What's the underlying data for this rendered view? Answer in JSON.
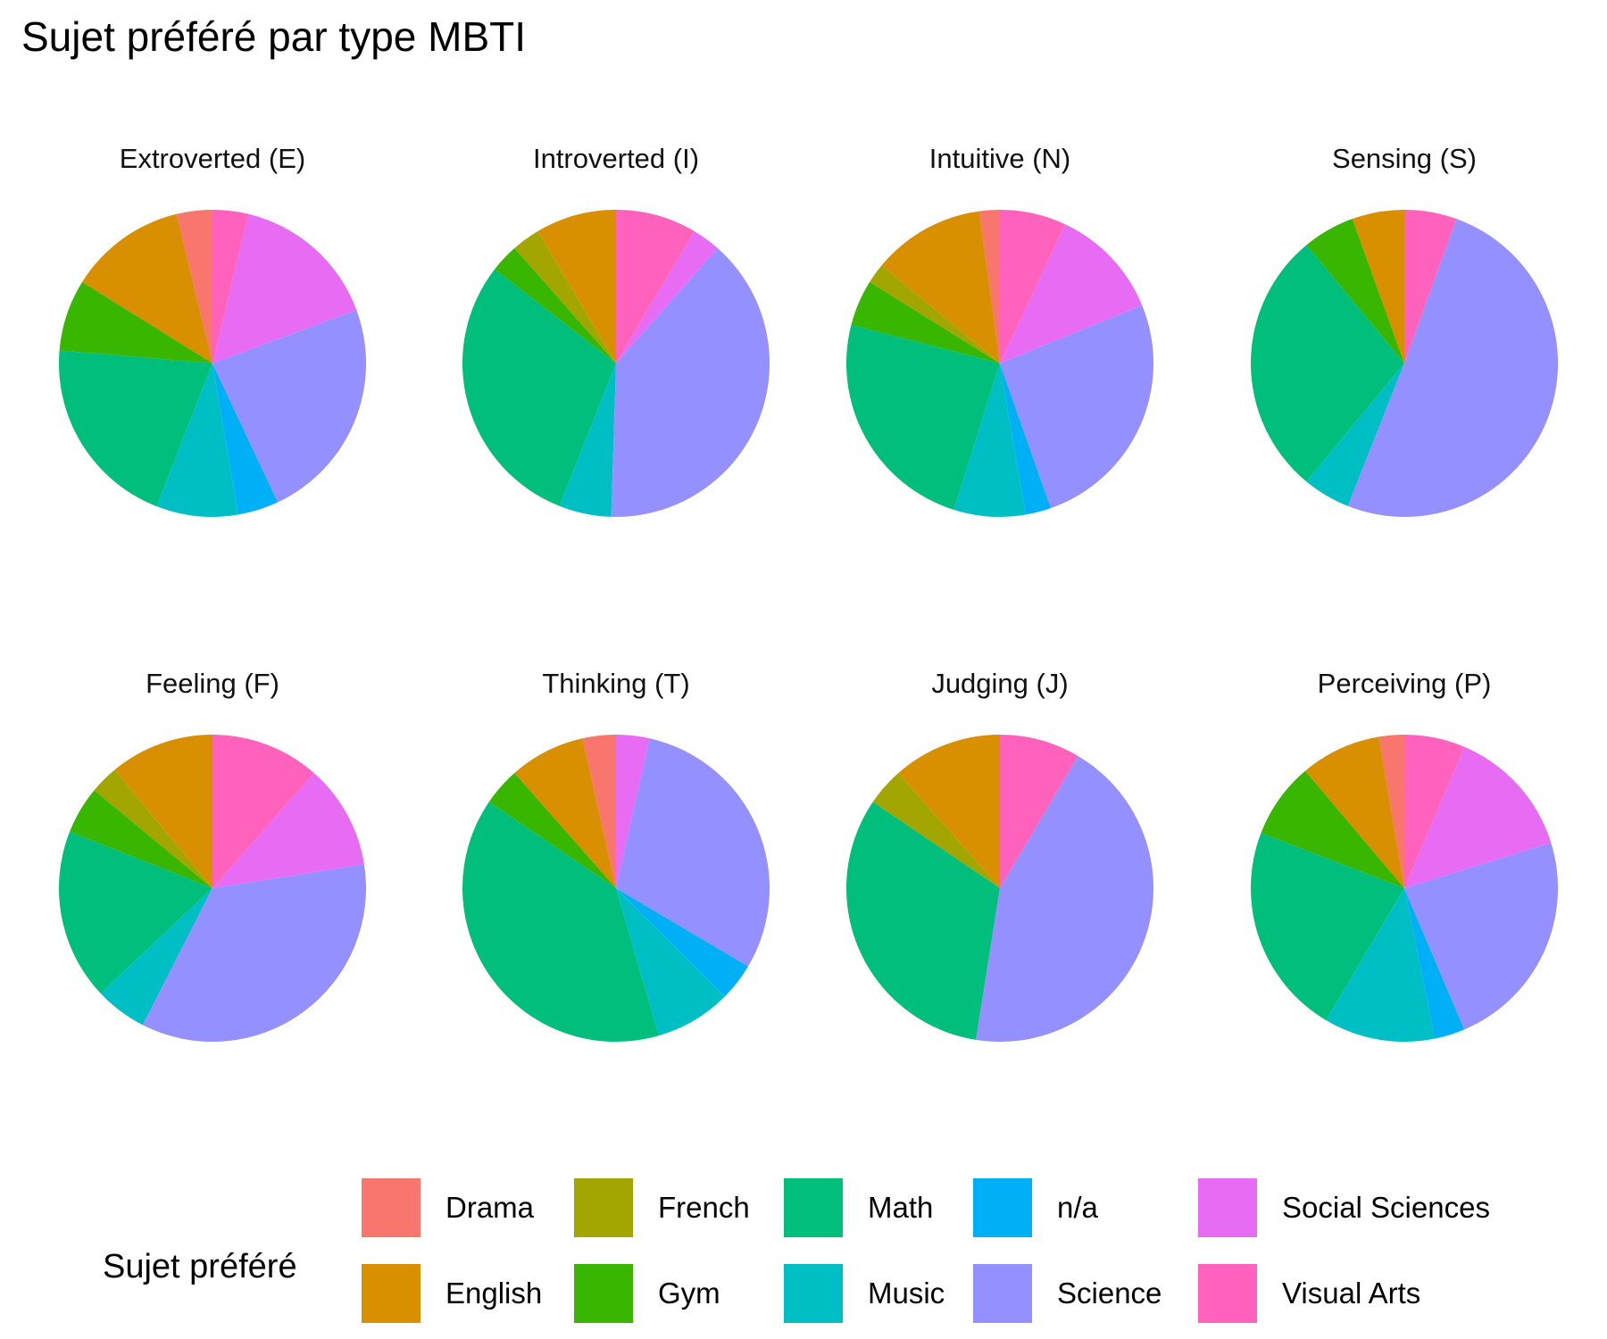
{
  "title": "Sujet préféré par type MBTI",
  "legend": {
    "title": "Sujet préféré",
    "items": [
      {
        "label": "Drama",
        "color": "#F8766D"
      },
      {
        "label": "English",
        "color": "#D89000"
      },
      {
        "label": "French",
        "color": "#A3A500"
      },
      {
        "label": "Gym",
        "color": "#39B600"
      },
      {
        "label": "Math",
        "color": "#00BF7D"
      },
      {
        "label": "Music",
        "color": "#00BFC4"
      },
      {
        "label": "n/a",
        "color": "#00B0F6"
      },
      {
        "label": "Science",
        "color": "#9590FF"
      },
      {
        "label": "Social Sciences",
        "color": "#E76BF3"
      },
      {
        "label": "Visual Arts",
        "color": "#FF62BC"
      }
    ]
  },
  "chart_data": [
    {
      "type": "pie",
      "title": "Extroverted (E)",
      "layout": "facet row 1 col 1",
      "labels": [
        "Drama",
        "English",
        "French",
        "Gym",
        "Math",
        "Music",
        "n/a",
        "Science",
        "Social Sciences",
        "Visual Arts"
      ],
      "values": [
        3.5,
        11.5,
        0,
        7,
        19,
        8,
        4,
        22,
        14.5,
        3.5
      ]
    },
    {
      "type": "pie",
      "title": "Introverted (I)",
      "layout": "facet row 1 col 2",
      "labels": [
        "Drama",
        "English",
        "French",
        "Gym",
        "Math",
        "Music",
        "n/a",
        "Science",
        "Social Sciences",
        "Visual Arts"
      ],
      "values": [
        0,
        8.5,
        3,
        3,
        29.5,
        5.5,
        0,
        39,
        3,
        8.5
      ]
    },
    {
      "type": "pie",
      "title": "Intuitive (N)",
      "layout": "facet row 1 col 3",
      "labels": [
        "Drama",
        "English",
        "French",
        "Gym",
        "Math",
        "Music",
        "n/a",
        "Science",
        "Social Sciences",
        "Visual Arts"
      ],
      "values": [
        2,
        11,
        2,
        4.5,
        22.5,
        7,
        2.5,
        24,
        11,
        6.5
      ]
    },
    {
      "type": "pie",
      "title": "Sensing (S)",
      "layout": "facet row 1 col 4",
      "labels": [
        "Drama",
        "English",
        "French",
        "Gym",
        "Math",
        "Music",
        "n/a",
        "Science",
        "Social Sciences",
        "Visual Arts"
      ],
      "values": [
        0,
        5.5,
        0,
        5.5,
        28,
        5,
        0,
        50.5,
        0,
        5.5
      ]
    },
    {
      "type": "pie",
      "title": "Feeling (F)",
      "layout": "facet row 2 col 1",
      "labels": [
        "Drama",
        "English",
        "French",
        "Gym",
        "Math",
        "Music",
        "n/a",
        "Science",
        "Social Sciences",
        "Visual Arts"
      ],
      "values": [
        0,
        11,
        3,
        5,
        18,
        5.5,
        0,
        35,
        11,
        11.5
      ]
    },
    {
      "type": "pie",
      "title": "Thinking (T)",
      "layout": "facet row 2 col 2",
      "labels": [
        "Drama",
        "English",
        "French",
        "Gym",
        "Math",
        "Music",
        "n/a",
        "Science",
        "Social Sciences",
        "Visual Arts"
      ],
      "values": [
        3.5,
        8,
        0,
        4,
        39,
        8,
        4,
        30,
        3.5,
        0
      ]
    },
    {
      "type": "pie",
      "title": "Judging (J)",
      "layout": "facet row 2 col 3",
      "labels": [
        "Drama",
        "English",
        "French",
        "Gym",
        "Math",
        "Music",
        "n/a",
        "Science",
        "Social Sciences",
        "Visual Arts"
      ],
      "values": [
        0,
        11.5,
        4,
        0,
        32,
        0,
        0,
        44,
        0,
        8.5
      ]
    },
    {
      "type": "pie",
      "title": "Perceiving (P)",
      "layout": "facet row 2 col 4",
      "labels": [
        "Drama",
        "English",
        "French",
        "Gym",
        "Math",
        "Music",
        "n/a",
        "Science",
        "Social Sciences",
        "Visual Arts"
      ],
      "values": [
        2.5,
        8,
        0,
        7.5,
        21,
        11,
        3,
        22,
        13,
        6
      ]
    }
  ]
}
